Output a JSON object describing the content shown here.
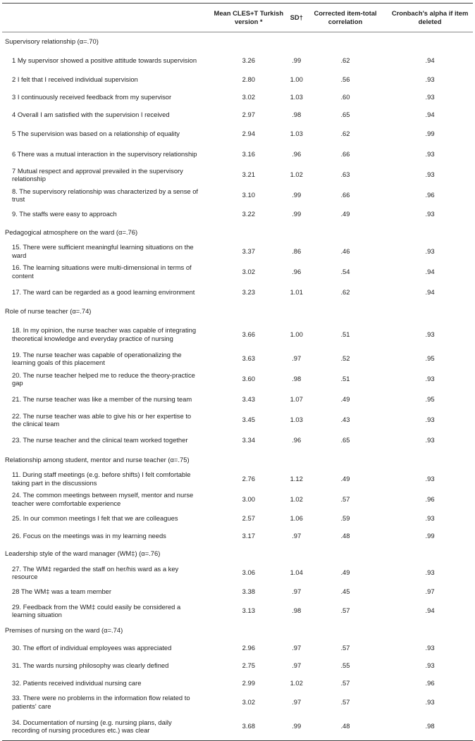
{
  "headers": [
    "",
    "Mean CLES+T Turkish version *",
    "SD†",
    "Corrected item-total correlation",
    "Cronbach's alpha if item deleted"
  ],
  "sections": [
    {
      "title": "Supervisory relationship  (α=.70)",
      "rows": [
        [
          "1 My supervisor showed a positive attitude towards supervision",
          "3.26",
          ".99",
          ".62",
          ".94"
        ],
        [
          "2 I felt that I received individual supervision",
          "2.80",
          "1.00",
          ".56",
          ".93"
        ],
        [
          "3 I continuously received feedback from my supervisor",
          "3.02",
          "1.03",
          ".60",
          ".93"
        ],
        [
          "4 Overall I am satisfied with the supervision I received",
          "2.97",
          ".98",
          ".65",
          ".94"
        ],
        [
          "5 The supervision was based on a relationship of equality",
          "2.94",
          "1.03",
          ".62",
          ".99"
        ],
        [
          "6 There was a mutual interaction in the supervisory relationship",
          "3.16",
          ".96",
          ".66",
          ".93"
        ],
        [
          "7 Mutual respect and approval prevailed in the supervisory relationship",
          "3.21",
          "1.02",
          ".63",
          ".93"
        ],
        [
          "8. The supervisory relationship was characterized by a sense of trust",
          "3.10",
          ".99",
          ".66",
          ".96"
        ],
        [
          "9. The staffs were easy to approach",
          "3.22",
          ".99",
          ".49",
          ".93"
        ]
      ]
    },
    {
      "title": "Pedagogical atmosphere on the ward (α=.76)",
      "rows": [
        [
          "15. There were sufficient meaningful learning situations on the ward",
          "3.37",
          ".86",
          ".46",
          ".93"
        ],
        [
          "16. The learning situations were multi-dimensional in terms of content",
          "3.02",
          ".96",
          ".54",
          ".94"
        ],
        [
          "17. The ward can be regarded as a good learning environment",
          "3.23",
          "1.01",
          ".62",
          ".94"
        ]
      ]
    },
    {
      "title": "Role of nurse teacher (α=.74)",
      "rows": [
        [
          "18. In my opinion, the nurse teacher was capable of integrating theoretical knowledge and everyday practice of nursing",
          "3.66",
          "1.00",
          ".51",
          ".93"
        ],
        [
          "19. The nurse teacher was capable of operationalizing the learning goals of this placement",
          "3.63",
          ".97",
          ".52",
          ".95"
        ],
        [
          "20. The nurse teacher helped me to reduce the theory-practice gap",
          "3.60",
          ".98",
          ".51",
          ".93"
        ],
        [
          "21. The nurse teacher was like a member of the nursing team",
          "3.43",
          "1.07",
          ".49",
          ".95"
        ],
        [
          "22. The nurse teacher was able to give his or her expertise to the clinical team",
          "3.45",
          "1.03",
          ".43",
          ".93"
        ],
        [
          "23. The nurse teacher and the clinical team worked together",
          "3.34",
          ".96",
          ".65",
          ".93"
        ]
      ]
    },
    {
      "title": "Relationship among student, mentor and nurse teacher (α=.75)",
      "rows": [
        [
          "11. During staff meetings (e.g. before shifts) I felt comfortable taking part in the discussions",
          "2.76",
          "1.12",
          ".49",
          ".93"
        ],
        [
          "24. The common meetings between myself, mentor and nurse teacher were comfortable experience",
          "3.00",
          "1.02",
          ".57",
          ".96"
        ],
        [
          "25. In our common meetings I felt that we are colleagues",
          "2.57",
          "1.06",
          ".59",
          ".93"
        ],
        [
          "26. Focus on the meetings was in my learning needs",
          "3.17",
          ".97",
          ".48",
          ".99"
        ]
      ]
    },
    {
      "title": "Leadership style of the ward manager (WM‡) (α=.76)",
      "rows": [
        [
          "27. The WM‡ regarded the staff on her/his ward as a key resource",
          "3.06",
          "1.04",
          ".49",
          ".93"
        ],
        [
          "28 The WM‡ was a team member",
          "3.38",
          ".97",
          ".45",
          ".97"
        ],
        [
          "29. Feedback from the WM‡ could easily be considered a learning situation",
          "3.13",
          ".98",
          ".57",
          ".94"
        ]
      ]
    },
    {
      "title": "Premises of nursing on the ward (α=.74)",
      "rows": [
        [
          "30. The effort of individual employees was appreciated",
          "2.96",
          ".97",
          ".57",
          ".93"
        ],
        [
          "31. The wards nursing philosophy was clearly defined",
          "2.75",
          ".97",
          ".55",
          ".93"
        ],
        [
          "32. Patients received individual nursing care",
          "2.99",
          "1.02",
          ".57",
          ".96"
        ],
        [
          "33. There were no problems in the information flow related to patients' care",
          "3.02",
          ".97",
          ".57",
          ".93"
        ],
        [
          "34. Documentation of nursing (e.g. nursing plans, daily recording of nursing procedures etc.) was clear",
          "3.68",
          ".99",
          ".48",
          ".98"
        ]
      ]
    }
  ]
}
